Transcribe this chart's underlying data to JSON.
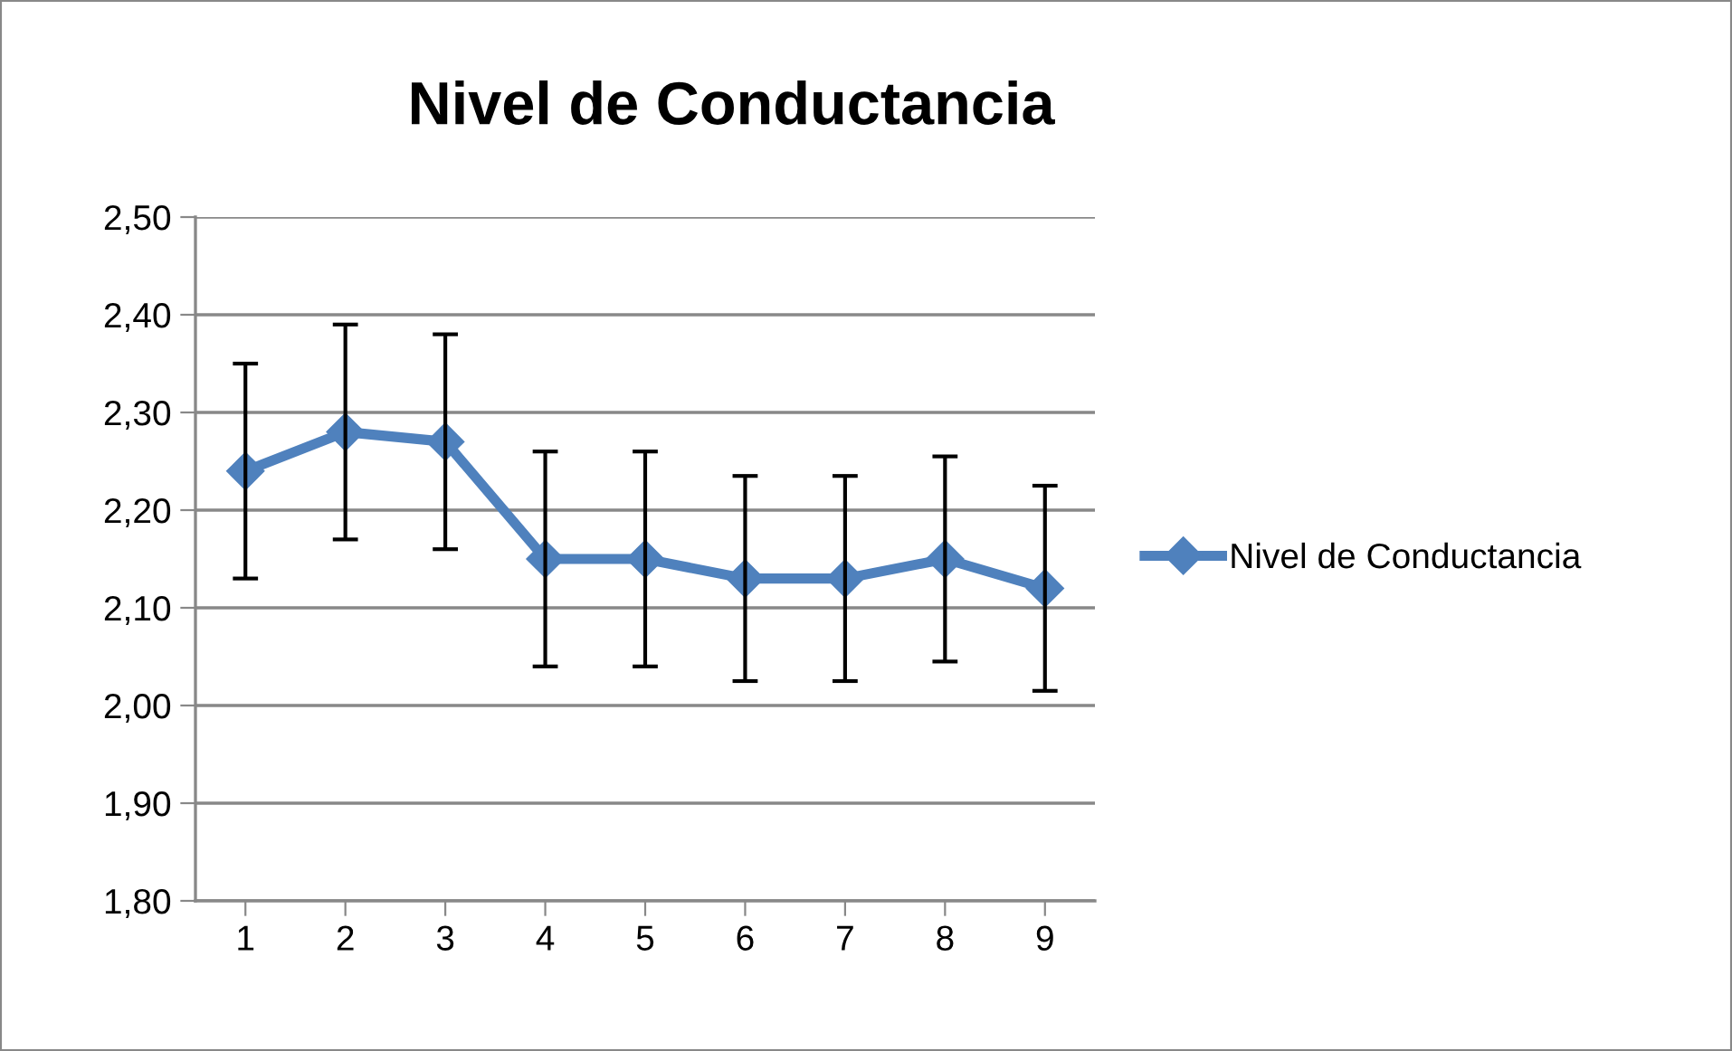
{
  "chart_data": {
    "type": "line",
    "title": "Nivel de Conductancia",
    "categories": [
      "1",
      "2",
      "3",
      "4",
      "5",
      "6",
      "7",
      "8",
      "9"
    ],
    "series": [
      {
        "name": "Nivel de Conductancia",
        "color": "#4f81bd",
        "values": [
          2.24,
          2.28,
          2.27,
          2.15,
          2.15,
          2.13,
          2.13,
          2.15,
          2.12
        ],
        "errors": [
          0.11,
          0.11,
          0.11,
          0.11,
          0.11,
          0.105,
          0.105,
          0.105,
          0.105
        ]
      }
    ],
    "ylim": [
      1.8,
      2.5
    ],
    "yticks": [
      {
        "value": 1.8,
        "label": "1,80"
      },
      {
        "value": 1.9,
        "label": "1,90"
      },
      {
        "value": 2.0,
        "label": "2,00"
      },
      {
        "value": 2.1,
        "label": "2,10"
      },
      {
        "value": 2.2,
        "label": "2,20"
      },
      {
        "value": 2.3,
        "label": "2,30"
      },
      {
        "value": 2.4,
        "label": "2,40"
      },
      {
        "value": 2.5,
        "label": "2,50"
      }
    ],
    "grid": "y",
    "legend": "right",
    "marker": "diamond",
    "line_style": "solid"
  }
}
